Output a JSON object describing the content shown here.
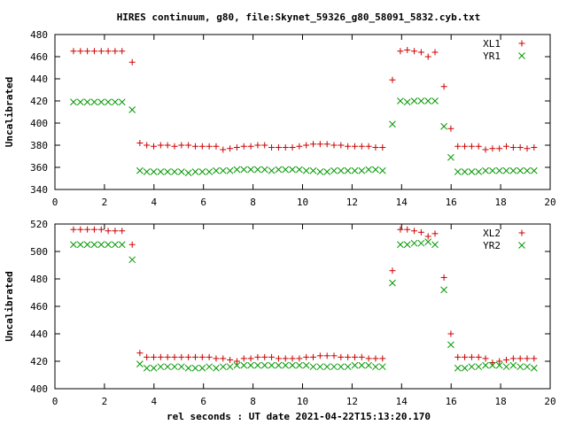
{
  "chart_data": [
    {
      "type": "scatter",
      "title": "HIRES continuum, g80, file:Skynet_59326_g80_58091_5832.cyb.txt",
      "xlabel": "",
      "ylabel": "Uncalibrated",
      "xlim": [
        0,
        20
      ],
      "ylim": [
        340,
        480
      ],
      "xticks": [
        0,
        2,
        4,
        6,
        8,
        10,
        12,
        14,
        16,
        18,
        20
      ],
      "yticks": [
        340,
        360,
        380,
        400,
        420,
        440,
        460,
        480
      ],
      "legend": "top-right",
      "grid": false,
      "x": [
        0.75,
        1.03,
        1.31,
        1.59,
        1.87,
        2.15,
        2.43,
        2.71,
        3.12,
        3.43,
        3.71,
        3.99,
        4.27,
        4.55,
        4.83,
        5.11,
        5.39,
        5.67,
        5.95,
        6.23,
        6.51,
        6.79,
        7.07,
        7.35,
        7.63,
        7.91,
        8.19,
        8.47,
        8.75,
        9.03,
        9.31,
        9.59,
        9.87,
        10.15,
        10.43,
        10.71,
        10.99,
        11.27,
        11.55,
        11.83,
        12.11,
        12.39,
        12.67,
        12.95,
        13.23,
        13.63,
        13.95,
        14.23,
        14.51,
        14.79,
        15.07,
        15.35,
        15.71,
        15.99,
        16.27,
        16.55,
        16.83,
        17.11,
        17.39,
        17.67,
        17.95,
        18.23,
        18.51,
        18.79,
        19.07,
        19.35
      ],
      "series": [
        {
          "name": "XL1",
          "color": "#cc0000",
          "marker": "plus",
          "values": [
            465,
            465,
            465,
            465,
            465,
            465,
            465,
            465,
            455,
            382,
            380,
            379,
            380,
            380,
            379,
            380,
            380,
            379,
            379,
            379,
            379,
            376,
            377,
            378,
            379,
            379,
            380,
            380,
            378,
            378,
            378,
            378,
            379,
            380,
            381,
            381,
            381,
            380,
            380,
            379,
            379,
            379,
            379,
            378,
            378,
            439,
            465,
            466,
            465,
            464,
            460,
            464,
            433,
            395,
            379,
            379,
            379,
            379,
            376,
            377,
            377,
            379,
            378,
            378,
            377,
            378
          ]
        },
        {
          "name": "YR1",
          "color": "#009900",
          "marker": "cross",
          "values": [
            419,
            419,
            419,
            419,
            419,
            419,
            419,
            419,
            412,
            357,
            356,
            356,
            356,
            356,
            356,
            356,
            355,
            356,
            356,
            356,
            357,
            357,
            357,
            358,
            358,
            358,
            358,
            358,
            357,
            358,
            358,
            358,
            358,
            357,
            357,
            356,
            356,
            357,
            357,
            357,
            357,
            357,
            358,
            358,
            357,
            399,
            420,
            419,
            420,
            420,
            420,
            420,
            397,
            369,
            356,
            356,
            356,
            356,
            357,
            357,
            357,
            357,
            357,
            357,
            357,
            357
          ]
        }
      ]
    },
    {
      "type": "scatter",
      "title": "",
      "xlabel": "rel seconds : UT date 2021-04-22T15:13:20.170",
      "ylabel": "Uncalibrated",
      "xlim": [
        0,
        20
      ],
      "ylim": [
        400,
        520
      ],
      "xticks": [
        0,
        2,
        4,
        6,
        8,
        10,
        12,
        14,
        16,
        18,
        20
      ],
      "yticks": [
        400,
        420,
        440,
        460,
        480,
        500,
        520
      ],
      "legend": "top-right",
      "grid": false,
      "x": [
        0.75,
        1.03,
        1.31,
        1.59,
        1.87,
        2.15,
        2.43,
        2.71,
        3.12,
        3.43,
        3.71,
        3.99,
        4.27,
        4.55,
        4.83,
        5.11,
        5.39,
        5.67,
        5.95,
        6.23,
        6.51,
        6.79,
        7.07,
        7.35,
        7.63,
        7.91,
        8.19,
        8.47,
        8.75,
        9.03,
        9.31,
        9.59,
        9.87,
        10.15,
        10.43,
        10.71,
        10.99,
        11.27,
        11.55,
        11.83,
        12.11,
        12.39,
        12.67,
        12.95,
        13.23,
        13.63,
        13.95,
        14.23,
        14.51,
        14.79,
        15.07,
        15.35,
        15.71,
        15.99,
        16.27,
        16.55,
        16.83,
        17.11,
        17.39,
        17.67,
        17.95,
        18.23,
        18.51,
        18.79,
        19.07,
        19.35
      ],
      "series": [
        {
          "name": "XL2",
          "color": "#cc0000",
          "marker": "plus",
          "values": [
            516,
            516,
            516,
            516,
            516,
            515,
            515,
            515,
            505,
            426,
            423,
            423,
            423,
            423,
            423,
            423,
            423,
            423,
            423,
            423,
            422,
            422,
            421,
            420,
            422,
            422,
            423,
            423,
            423,
            422,
            422,
            422,
            422,
            423,
            423,
            424,
            424,
            424,
            423,
            423,
            423,
            423,
            422,
            422,
            422,
            486,
            516,
            516,
            515,
            514,
            511,
            513,
            481,
            440,
            423,
            423,
            423,
            423,
            422,
            419,
            420,
            421,
            422,
            422,
            422,
            422
          ]
        },
        {
          "name": "YR2",
          "color": "#009900",
          "marker": "cross",
          "values": [
            505,
            505,
            505,
            505,
            505,
            505,
            505,
            505,
            494,
            418,
            415,
            415,
            416,
            416,
            416,
            416,
            415,
            415,
            415,
            416,
            415,
            416,
            416,
            417,
            417,
            417,
            417,
            417,
            417,
            417,
            417,
            417,
            417,
            417,
            416,
            416,
            416,
            416,
            416,
            416,
            417,
            417,
            417,
            416,
            416,
            477,
            505,
            505,
            506,
            506,
            507,
            505,
            472,
            432,
            415,
            415,
            416,
            416,
            417,
            417,
            417,
            416,
            417,
            416,
            416,
            415
          ]
        }
      ]
    }
  ]
}
